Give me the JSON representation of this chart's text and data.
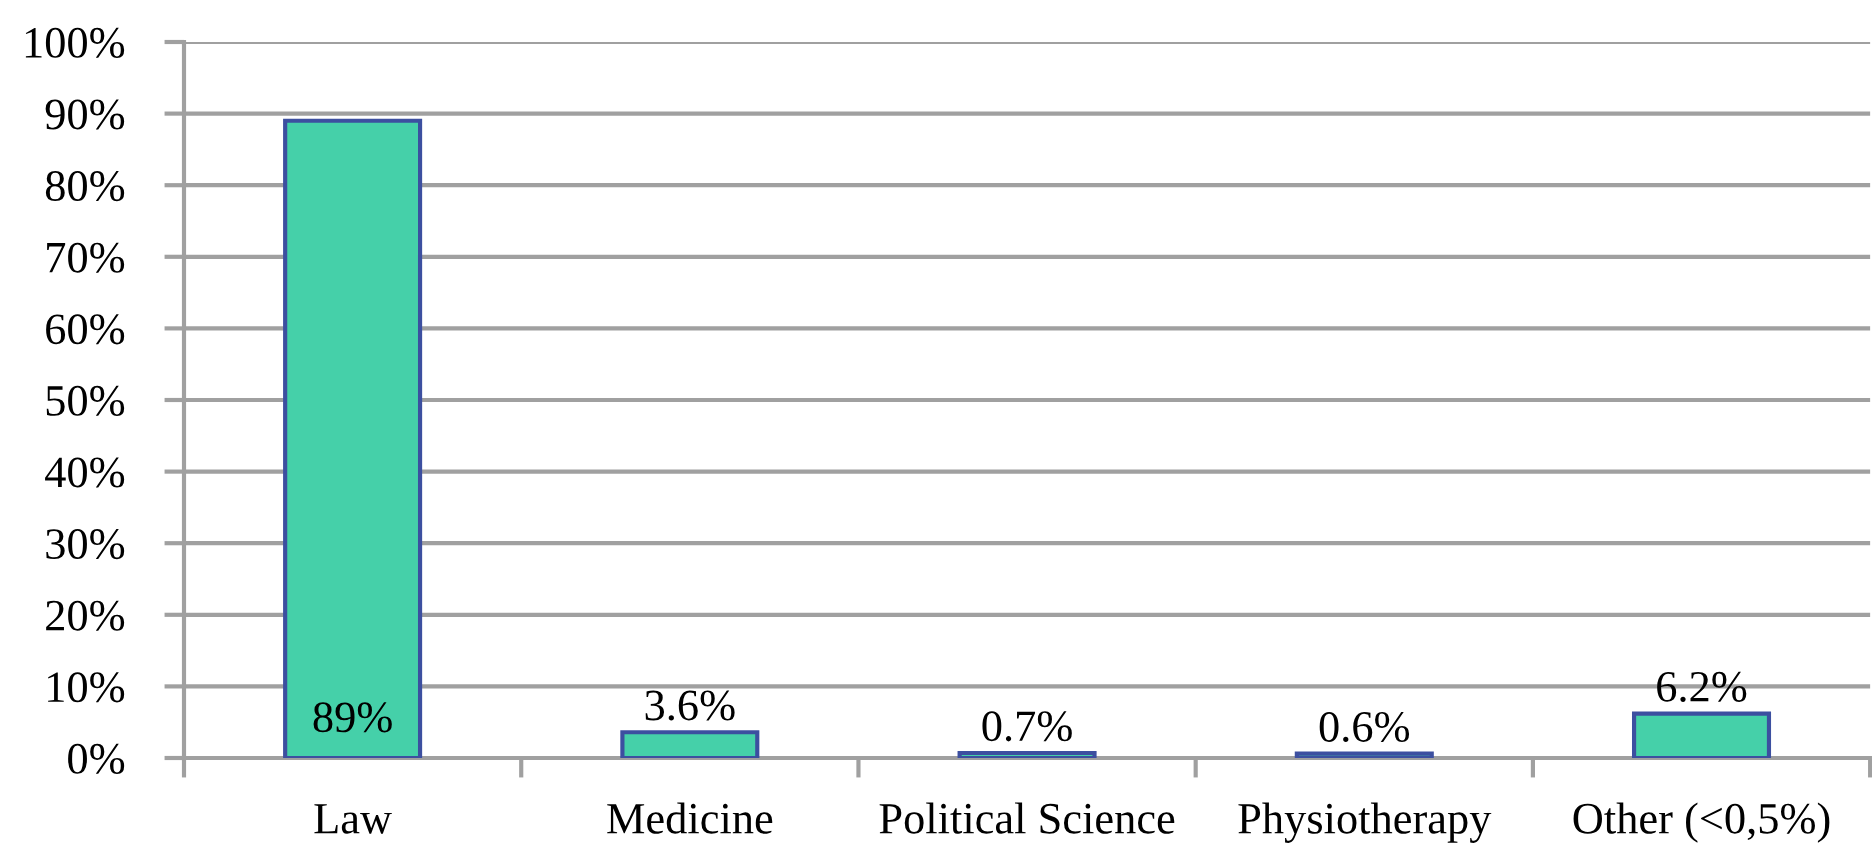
{
  "chart_data": {
    "type": "bar",
    "categories": [
      "Law",
      "Medicine",
      "Political Science",
      "Physiotherapy",
      "Other (<0,5%)"
    ],
    "values": [
      89,
      3.6,
      0.7,
      0.6,
      6.2
    ],
    "color": "#45d0a9",
    "value_labels": [
      "89%",
      "3.6%",
      "0.7%",
      "0.6%",
      "6.2%"
    ],
    "ylim": [
      0,
      100
    ],
    "yticks": [
      {
        "value": 0,
        "label": "0%"
      },
      {
        "value": 10,
        "label": "10%"
      },
      {
        "value": 20,
        "label": "20%"
      },
      {
        "value": 30,
        "label": "30%"
      },
      {
        "value": 40,
        "label": "40%"
      },
      {
        "value": 50,
        "label": "50%"
      },
      {
        "value": 60,
        "label": "60%"
      },
      {
        "value": 70,
        "label": "70%"
      },
      {
        "value": 80,
        "label": "80%"
      },
      {
        "value": 90,
        "label": "90%"
      },
      {
        "value": 100,
        "label": "100%"
      }
    ],
    "grid": "y"
  }
}
